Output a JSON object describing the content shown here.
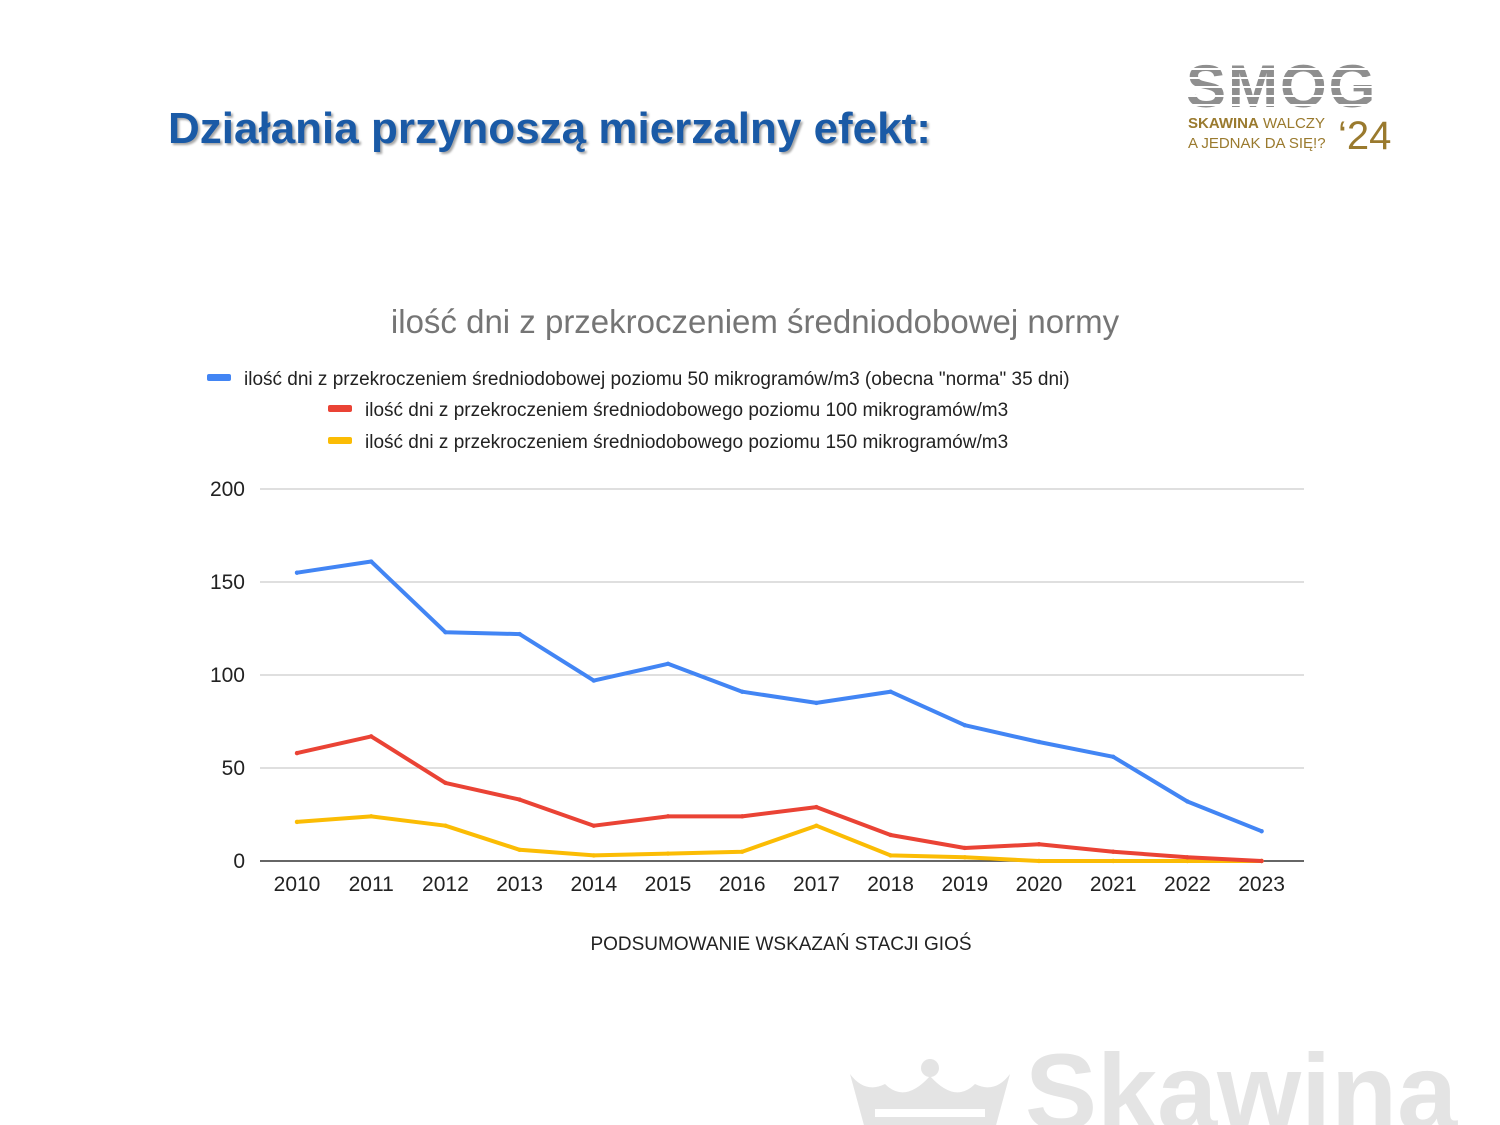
{
  "slide": {
    "title": "Działania przynoszą mierzalny efekt:"
  },
  "logo": {
    "word": "SMOG",
    "line1_bold": "SKAWINA",
    "line1_rest": " WALCZY",
    "line2": "A JEDNAK DA SIĘ!?",
    "year": "‘24"
  },
  "watermark": {
    "text": "Skawina",
    "icon": "crown-icon"
  },
  "colors": {
    "title": "#1a5aa6",
    "series_50": "#4285f4",
    "series_100": "#ea4335",
    "series_150": "#fbbc04",
    "logo_gold": "#9a7a2e"
  },
  "chart_data": {
    "type": "line",
    "title": "ilość dni z przekroczeniem średniodobowej normy",
    "xlabel": "PODSUMOWANIE WSKAZAŃ STACJI GIOŚ",
    "ylabel": "",
    "ylim": [
      0,
      200
    ],
    "yticks": [
      "0",
      "50",
      "100",
      "150",
      "200"
    ],
    "grid": true,
    "legend_position": "top",
    "categories": [
      "2010",
      "2011",
      "2012",
      "2013",
      "2014",
      "2015",
      "2016",
      "2017",
      "2018",
      "2019",
      "2020",
      "2021",
      "2022",
      "2023"
    ],
    "series": [
      {
        "name": "ilość dni z przekroczeniem średniodobowej poziomu 50 mikrogramów/m3 (obecna \"norma\" 35 dni)",
        "color": "#4285f4",
        "values": [
          155,
          161,
          123,
          122,
          97,
          106,
          91,
          85,
          91,
          73,
          64,
          56,
          32,
          16
        ]
      },
      {
        "name": "ilość dni z przekroczeniem średniodobowego poziomu 100 mikrogramów/m3",
        "color": "#ea4335",
        "values": [
          58,
          67,
          42,
          33,
          19,
          24,
          24,
          29,
          14,
          7,
          9,
          5,
          2,
          0
        ]
      },
      {
        "name": "ilość dni z przekroczeniem średniodobowego poziomu 150 mikrogramów/m3",
        "color": "#fbbc04",
        "values": [
          21,
          24,
          19,
          6,
          3,
          4,
          5,
          19,
          3,
          2,
          0,
          0,
          0,
          0
        ]
      }
    ]
  }
}
